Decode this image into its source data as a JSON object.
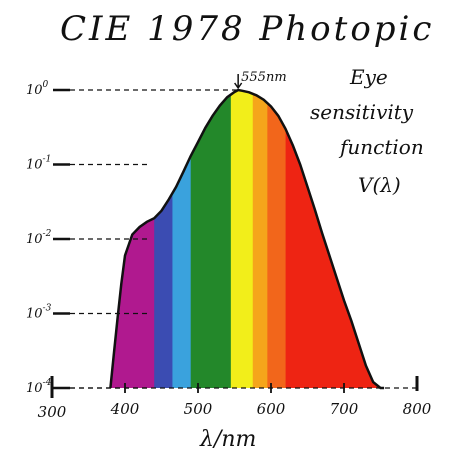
{
  "chart_data": {
    "type": "area",
    "title": "CIE 1978 Photopic",
    "annotation_lines": [
      "Eye",
      "sensitivity",
      "function",
      "V(λ)"
    ],
    "xlabel": "λ/nm",
    "ylabel": "",
    "x_scale": "linear",
    "y_scale": "log",
    "xlim": [
      300,
      800
    ],
    "ylim": [
      0.0001,
      1
    ],
    "x_ticks": [
      {
        "value": 300,
        "label": "300"
      },
      {
        "value": 400,
        "label": "400"
      },
      {
        "value": 500,
        "label": "500"
      },
      {
        "value": 600,
        "label": "600"
      },
      {
        "value": 700,
        "label": "700"
      },
      {
        "value": 800,
        "label": "800"
      }
    ],
    "y_ticks": [
      {
        "value": 1,
        "base": "10",
        "exp": "0"
      },
      {
        "value": 0.1,
        "base": "10",
        "exp": "-1"
      },
      {
        "value": 0.01,
        "base": "10",
        "exp": "-2"
      },
      {
        "value": 0.001,
        "base": "10",
        "exp": "-3"
      },
      {
        "value": 0.0001,
        "base": "10",
        "exp": "-4"
      }
    ],
    "peak_label": "555nm",
    "peak": {
      "x": 555,
      "y": 1
    },
    "grid": false,
    "series": [
      {
        "x": [
          380,
          385,
          390,
          395,
          400,
          410,
          420,
          430,
          440,
          450,
          460,
          470,
          480,
          490,
          500,
          510,
          520,
          530,
          540,
          550,
          555,
          560,
          570,
          580,
          590,
          600,
          610,
          620,
          630,
          640,
          650,
          660,
          670,
          680,
          690,
          700,
          710,
          720,
          730,
          740,
          750,
          755
        ],
        "y": [
          0.0001,
          0.0003,
          0.0009,
          0.0025,
          0.006,
          0.0115,
          0.0145,
          0.017,
          0.019,
          0.024,
          0.034,
          0.05,
          0.08,
          0.13,
          0.2,
          0.31,
          0.45,
          0.62,
          0.8,
          0.94,
          1.0,
          0.98,
          0.93,
          0.85,
          0.74,
          0.6,
          0.45,
          0.3,
          0.18,
          0.1,
          0.05,
          0.025,
          0.012,
          0.006,
          0.003,
          0.0015,
          0.0008,
          0.0004,
          0.0002,
          0.00012,
          0.0001,
          0.0001
        ]
      }
    ],
    "color_bands": [
      {
        "from": 380,
        "to": 440,
        "color": "#b0198f"
      },
      {
        "from": 440,
        "to": 465,
        "color": "#3b4cb2"
      },
      {
        "from": 465,
        "to": 490,
        "color": "#3aa2dd"
      },
      {
        "from": 490,
        "to": 545,
        "color": "#23882a"
      },
      {
        "from": 545,
        "to": 575,
        "color": "#f2ee1a"
      },
      {
        "from": 575,
        "to": 595,
        "color": "#f5a51b"
      },
      {
        "from": 595,
        "to": 620,
        "color": "#f2661b"
      },
      {
        "from": 620,
        "to": 755,
        "color": "#ee2413"
      }
    ]
  }
}
